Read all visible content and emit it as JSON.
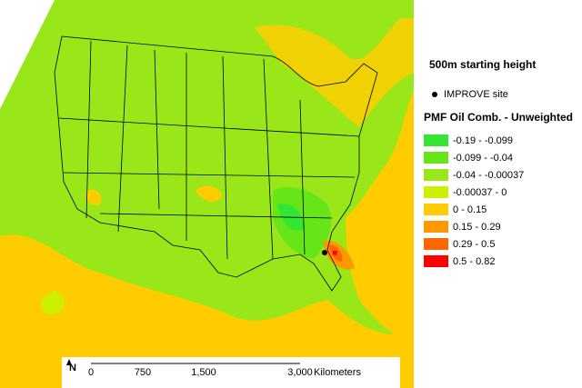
{
  "map": {
    "title": "500m starting height",
    "site_label": "IMPROVE site",
    "legend_title": "PMF Oil Comb. - Unweighted",
    "legend": [
      {
        "label": "-0.19 - -0.099",
        "color": "#33e633"
      },
      {
        "label": "-0.099 - -0.04",
        "color": "#66e619"
      },
      {
        "label": "-0.04 - -0.00037",
        "color": "#99e619"
      },
      {
        "label": "-0.00037 - 0",
        "color": "#ccf000"
      },
      {
        "label": "0 - 0.15",
        "color": "#ffcc00"
      },
      {
        "label": "0.15 - 0.29",
        "color": "#ff9900"
      },
      {
        "label": "0.29 - 0.5",
        "color": "#ff6600"
      },
      {
        "label": "0.5 - 0.82",
        "color": "#ff0000"
      }
    ],
    "north": "N",
    "scale_bar": {
      "labels": [
        "0",
        "750",
        "1,500",
        "3,000"
      ],
      "unit": "Kilometers"
    }
  }
}
